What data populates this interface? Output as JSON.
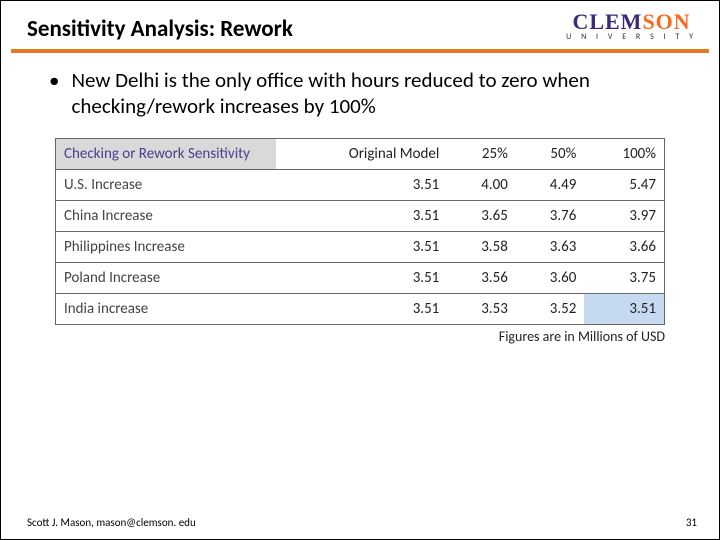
{
  "header": {
    "title": "Sensitivity Analysis: Rework",
    "logo_main": "CLEMSON",
    "logo_sub": "U N I V E R S I T Y",
    "logo_color_left": "#3b2a7a",
    "logo_color_right": "#f66b1e",
    "rule_color": "#e87722"
  },
  "bullet": {
    "text": "New Delhi is the only office with hours reduced to zero when checking/rework increases by 100%"
  },
  "table": {
    "header_highlight_bg": "#d9d9d9",
    "cell_highlight_bg": "#c5d9f1",
    "border_color": "#666666",
    "header_text_color": "#4f3b8f",
    "columns": [
      "Checking or Rework Sensitivity",
      "Original Model",
      "25%",
      "50%",
      "100%"
    ],
    "rows": [
      {
        "label": "U.S. Increase",
        "values": [
          "3.51",
          "4.00",
          "4.49",
          "5.47"
        ]
      },
      {
        "label": "China Increase",
        "values": [
          "3.51",
          "3.65",
          "3.76",
          "3.97"
        ]
      },
      {
        "label": "Philippines Increase",
        "values": [
          "3.51",
          "3.58",
          "3.63",
          "3.66"
        ]
      },
      {
        "label": "Poland Increase",
        "values": [
          "3.51",
          "3.56",
          "3.60",
          "3.75"
        ]
      },
      {
        "label": "India increase",
        "values": [
          "3.51",
          "3.53",
          "3.52",
          "3.51"
        ]
      }
    ],
    "caption": "Figures are in Millions of USD",
    "highlighted_cell": {
      "row": 4,
      "col": 3
    }
  },
  "footer": {
    "author": "Scott J. Mason, mason@clemson. edu",
    "page": "31"
  }
}
